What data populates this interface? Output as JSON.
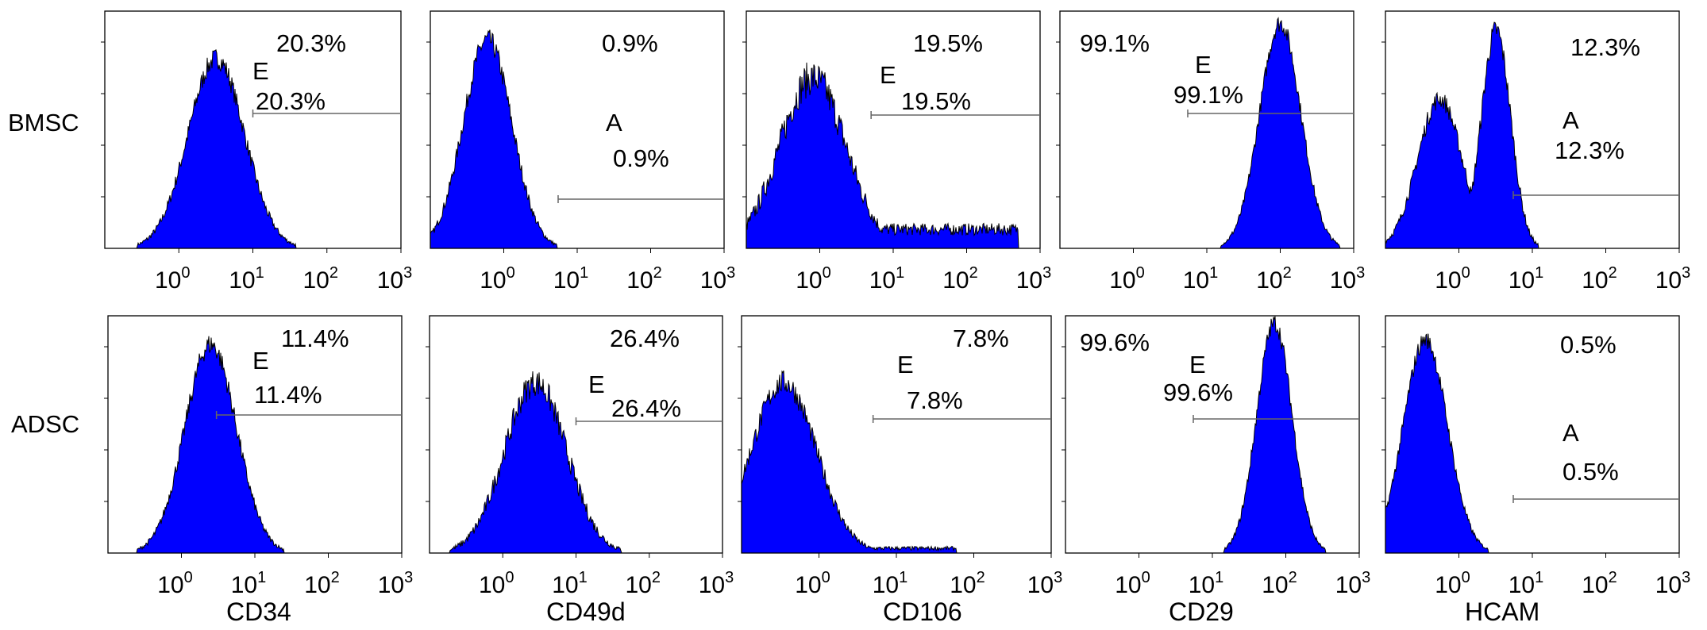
{
  "figure": {
    "rows": [
      "BMSC",
      "ADSC"
    ],
    "markers": [
      "CD34",
      "CD49d",
      "CD106",
      "CD29",
      "HCAM"
    ],
    "x_tick_labels": [
      {
        "base": "10",
        "exp": "0"
      },
      {
        "base": "10",
        "exp": "1"
      },
      {
        "base": "10",
        "exp": "2"
      },
      {
        "base": "10",
        "exp": "3"
      }
    ]
  },
  "colors": {
    "fill": "#0000ff",
    "outline": "#000000",
    "gate": "#666666"
  },
  "chart_data": [
    {
      "type": "area",
      "row": "BMSC",
      "marker": "CD34",
      "x_scale": "log",
      "xlim": [
        0.1,
        1000
      ],
      "percent_label": "20.3%",
      "gate_letter": "E",
      "gate_percent": "20.3%",
      "gate_range": [
        10,
        1000
      ],
      "histogram": {
        "peaks": [
          {
            "center": 3.2,
            "height": 0.8,
            "width_log": 0.38
          }
        ],
        "noise": 0.05
      }
    },
    {
      "type": "area",
      "row": "BMSC",
      "marker": "CD49d",
      "x_scale": "log",
      "xlim": [
        0.1,
        1000
      ],
      "percent_label": "0.9%",
      "gate_letter": "A",
      "gate_percent": "0.9%",
      "gate_range": [
        5.5,
        1000
      ],
      "histogram": {
        "peaks": [
          {
            "center": 0.6,
            "height": 0.88,
            "width_log": 0.33
          }
        ],
        "noise": 0.05
      }
    },
    {
      "type": "area",
      "row": "BMSC",
      "marker": "CD106",
      "x_scale": "log",
      "xlim": [
        0.1,
        1000
      ],
      "percent_label": "19.5%",
      "gate_letter": "E",
      "gate_percent": "19.5%",
      "gate_range": [
        5,
        1000
      ],
      "histogram": {
        "peaks": [
          {
            "center": 0.8,
            "height": 0.72,
            "width_log": 0.45
          }
        ],
        "floor": 0.08,
        "floor_end": 500,
        "noise": 0.09
      }
    },
    {
      "type": "area",
      "row": "BMSC",
      "marker": "CD29",
      "x_scale": "log",
      "xlim": [
        0.1,
        1000
      ],
      "percent_label": "99.1%",
      "gate_letter": "E",
      "gate_percent": "99.1%",
      "gate_range": [
        5.5,
        1000
      ],
      "histogram": {
        "peaks": [
          {
            "center": 100,
            "height": 0.95,
            "width_log": 0.28
          }
        ],
        "noise": 0.04
      }
    },
    {
      "type": "area",
      "row": "BMSC",
      "marker": "HCAM",
      "x_scale": "log",
      "xlim": [
        0.1,
        1000
      ],
      "percent_label": "12.3%",
      "gate_letter": "A",
      "gate_percent": "12.3%",
      "gate_range": [
        5.5,
        1000
      ],
      "histogram": {
        "peaks": [
          {
            "center": 0.55,
            "height": 0.63,
            "width_log": 0.3
          },
          {
            "center": 3.2,
            "height": 0.92,
            "width_log": 0.2
          }
        ],
        "noise": 0.05
      }
    },
    {
      "type": "area",
      "row": "ADSC",
      "marker": "CD34",
      "x_scale": "log",
      "xlim": [
        0.1,
        1000
      ],
      "percent_label": "11.4%",
      "gate_letter": "E",
      "gate_percent": "11.4%",
      "gate_range": [
        3,
        1000
      ],
      "histogram": {
        "peaks": [
          {
            "center": 2.5,
            "height": 0.88,
            "width_log": 0.35
          }
        ],
        "noise": 0.05
      }
    },
    {
      "type": "area",
      "row": "ADSC",
      "marker": "CD49d",
      "x_scale": "log",
      "xlim": [
        0.1,
        1000
      ],
      "percent_label": "26.4%",
      "gate_letter": "E",
      "gate_percent": "26.4%",
      "gate_range": [
        10,
        1000
      ],
      "histogram": {
        "peaks": [
          {
            "center": 2.8,
            "height": 0.72,
            "width_log": 0.42
          }
        ],
        "noise": 0.07
      }
    },
    {
      "type": "area",
      "row": "ADSC",
      "marker": "CD106",
      "x_scale": "log",
      "xlim": [
        0.1,
        1000
      ],
      "percent_label": "7.8%",
      "gate_letter": "E",
      "gate_percent": "7.8%",
      "gate_range": [
        5,
        1000
      ],
      "histogram": {
        "peaks": [
          {
            "center": 0.35,
            "height": 0.72,
            "width_log": 0.42
          }
        ],
        "floor": 0.02,
        "floor_end": 60,
        "noise": 0.06
      }
    },
    {
      "type": "area",
      "row": "ADSC",
      "marker": "CD29",
      "x_scale": "log",
      "xlim": [
        0.1,
        1000
      ],
      "percent_label": "99.6%",
      "gate_letter": "E",
      "gate_percent": "99.6%",
      "gate_range": [
        5.5,
        1000
      ],
      "histogram": {
        "peaks": [
          {
            "center": 70,
            "height": 0.97,
            "width_log": 0.24
          }
        ],
        "noise": 0.04
      }
    },
    {
      "type": "area",
      "row": "ADSC",
      "marker": "HCAM",
      "x_scale": "log",
      "xlim": [
        0.1,
        1000
      ],
      "percent_label": "0.5%",
      "gate_letter": "A",
      "gate_percent": "0.5%",
      "gate_range": [
        5.5,
        1000
      ],
      "histogram": {
        "peaks": [
          {
            "center": 0.35,
            "height": 0.9,
            "width_log": 0.3
          }
        ],
        "noise": 0.04
      }
    }
  ]
}
